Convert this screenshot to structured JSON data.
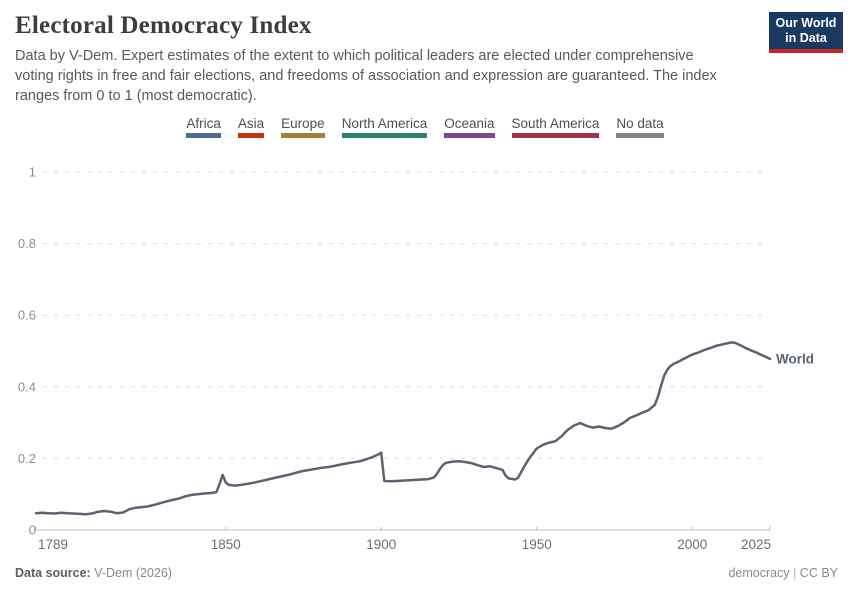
{
  "header": {
    "title": "Electoral Democracy Index",
    "subtitle": "Data by V-Dem. Expert estimates of the extent to which political leaders are elected under comprehensive voting rights in free and fair elections, and freedoms of association and expression are guaranteed. The index ranges from 0 to 1 (most democratic).",
    "logo": {
      "line1": "Our World",
      "line2": "in Data",
      "bg_color": "#1a3a63",
      "bar_color": "#c9261d"
    }
  },
  "legend": {
    "items": [
      {
        "label": "Africa",
        "color": "#4C6A9C"
      },
      {
        "label": "Asia",
        "color": "#C5310A"
      },
      {
        "label": "Europe",
        "color": "#A97E3C"
      },
      {
        "label": "North America",
        "color": "#2C8465"
      },
      {
        "label": "Oceania",
        "color": "#7E4394"
      },
      {
        "label": "South America",
        "color": "#9E3347"
      },
      {
        "label": "No data",
        "color": "#818588"
      }
    ]
  },
  "chart_data": {
    "type": "line",
    "title": "Electoral Democracy Index",
    "xlabel": "",
    "ylabel": "",
    "xlim": [
      1789,
      2025
    ],
    "ylim": [
      0,
      1
    ],
    "x_ticks": [
      1789,
      1850,
      1900,
      1950,
      2000,
      2025
    ],
    "y_ticks": [
      0,
      0.2,
      0.4,
      0.6,
      0.8,
      1
    ],
    "grid": "horizontal-dashed",
    "legend_position": "top",
    "series": [
      {
        "name": "World",
        "color": "#5B6371",
        "points": [
          [
            1789,
            0.047
          ],
          [
            1791,
            0.048
          ],
          [
            1793,
            0.047
          ],
          [
            1795,
            0.046
          ],
          [
            1797,
            0.048
          ],
          [
            1799,
            0.047
          ],
          [
            1801,
            0.046
          ],
          [
            1803,
            0.045
          ],
          [
            1805,
            0.044
          ],
          [
            1807,
            0.046
          ],
          [
            1809,
            0.051
          ],
          [
            1811,
            0.053
          ],
          [
            1813,
            0.051
          ],
          [
            1815,
            0.047
          ],
          [
            1817,
            0.049
          ],
          [
            1819,
            0.058
          ],
          [
            1821,
            0.062
          ],
          [
            1823,
            0.064
          ],
          [
            1825,
            0.066
          ],
          [
            1827,
            0.07
          ],
          [
            1829,
            0.075
          ],
          [
            1831,
            0.08
          ],
          [
            1833,
            0.084
          ],
          [
            1835,
            0.088
          ],
          [
            1837,
            0.094
          ],
          [
            1839,
            0.098
          ],
          [
            1841,
            0.1
          ],
          [
            1843,
            0.102
          ],
          [
            1845,
            0.103
          ],
          [
            1847,
            0.106
          ],
          [
            1848,
            0.128
          ],
          [
            1849,
            0.154
          ],
          [
            1850,
            0.133
          ],
          [
            1851,
            0.126
          ],
          [
            1853,
            0.124
          ],
          [
            1855,
            0.126
          ],
          [
            1857,
            0.129
          ],
          [
            1859,
            0.132
          ],
          [
            1861,
            0.136
          ],
          [
            1863,
            0.14
          ],
          [
            1865,
            0.144
          ],
          [
            1867,
            0.148
          ],
          [
            1869,
            0.152
          ],
          [
            1871,
            0.156
          ],
          [
            1873,
            0.161
          ],
          [
            1875,
            0.165
          ],
          [
            1877,
            0.168
          ],
          [
            1879,
            0.171
          ],
          [
            1881,
            0.174
          ],
          [
            1883,
            0.176
          ],
          [
            1885,
            0.179
          ],
          [
            1887,
            0.183
          ],
          [
            1889,
            0.186
          ],
          [
            1891,
            0.189
          ],
          [
            1893,
            0.192
          ],
          [
            1895,
            0.197
          ],
          [
            1897,
            0.203
          ],
          [
            1899,
            0.211
          ],
          [
            1900,
            0.216
          ],
          [
            1901,
            0.137
          ],
          [
            1903,
            0.136
          ],
          [
            1905,
            0.137
          ],
          [
            1907,
            0.138
          ],
          [
            1909,
            0.139
          ],
          [
            1911,
            0.14
          ],
          [
            1913,
            0.141
          ],
          [
            1915,
            0.142
          ],
          [
            1917,
            0.147
          ],
          [
            1918,
            0.158
          ],
          [
            1919,
            0.172
          ],
          [
            1920,
            0.183
          ],
          [
            1921,
            0.188
          ],
          [
            1923,
            0.191
          ],
          [
            1925,
            0.192
          ],
          [
            1927,
            0.19
          ],
          [
            1929,
            0.187
          ],
          [
            1931,
            0.181
          ],
          [
            1933,
            0.176
          ],
          [
            1935,
            0.178
          ],
          [
            1937,
            0.173
          ],
          [
            1939,
            0.168
          ],
          [
            1940,
            0.152
          ],
          [
            1941,
            0.144
          ],
          [
            1943,
            0.141
          ],
          [
            1944,
            0.146
          ],
          [
            1945,
            0.162
          ],
          [
            1946,
            0.178
          ],
          [
            1947,
            0.192
          ],
          [
            1948,
            0.205
          ],
          [
            1949,
            0.216
          ],
          [
            1950,
            0.228
          ],
          [
            1952,
            0.238
          ],
          [
            1954,
            0.244
          ],
          [
            1956,
            0.248
          ],
          [
            1958,
            0.262
          ],
          [
            1960,
            0.28
          ],
          [
            1962,
            0.292
          ],
          [
            1964,
            0.299
          ],
          [
            1966,
            0.291
          ],
          [
            1968,
            0.286
          ],
          [
            1970,
            0.289
          ],
          [
            1972,
            0.285
          ],
          [
            1974,
            0.283
          ],
          [
            1976,
            0.29
          ],
          [
            1978,
            0.3
          ],
          [
            1980,
            0.313
          ],
          [
            1982,
            0.32
          ],
          [
            1984,
            0.328
          ],
          [
            1986,
            0.335
          ],
          [
            1988,
            0.35
          ],
          [
            1989,
            0.373
          ],
          [
            1990,
            0.403
          ],
          [
            1991,
            0.432
          ],
          [
            1992,
            0.448
          ],
          [
            1993,
            0.458
          ],
          [
            1994,
            0.464
          ],
          [
            1995,
            0.468
          ],
          [
            1996,
            0.472
          ],
          [
            1997,
            0.477
          ],
          [
            1998,
            0.481
          ],
          [
            1999,
            0.486
          ],
          [
            2000,
            0.49
          ],
          [
            2002,
            0.496
          ],
          [
            2004,
            0.503
          ],
          [
            2006,
            0.509
          ],
          [
            2008,
            0.515
          ],
          [
            2010,
            0.519
          ],
          [
            2012,
            0.523
          ],
          [
            2013,
            0.524
          ],
          [
            2014,
            0.522
          ],
          [
            2015,
            0.518
          ],
          [
            2016,
            0.514
          ],
          [
            2017,
            0.509
          ],
          [
            2018,
            0.505
          ],
          [
            2019,
            0.501
          ],
          [
            2020,
            0.498
          ],
          [
            2021,
            0.494
          ],
          [
            2022,
            0.49
          ],
          [
            2023,
            0.486
          ],
          [
            2024,
            0.482
          ],
          [
            2025,
            0.478
          ]
        ],
        "end_label": "World"
      }
    ]
  },
  "footer": {
    "source_label": "Data source:",
    "source_value": " V-Dem (2026)",
    "slug": "democracy",
    "separator": " | ",
    "license": "CC BY"
  }
}
